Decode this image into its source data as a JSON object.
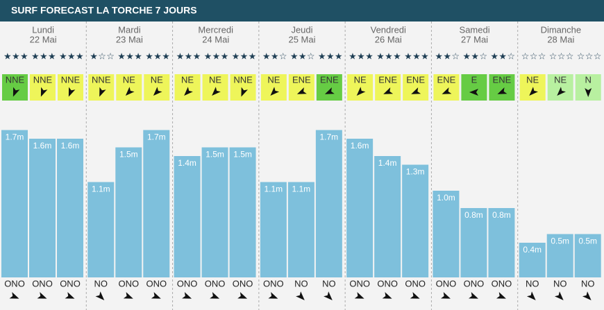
{
  "title": "SURF FORECAST LA TORCHE 7 JOURS",
  "days": [
    {
      "name": "Lundi",
      "date": "22 Mai",
      "slots": [
        {
          "stars": 3,
          "wind": "NNE",
          "wind_color": "#66cc44",
          "height": 1.7,
          "height_label": "1.7m",
          "swell": "ONO"
        },
        {
          "stars": 3,
          "wind": "NNE",
          "wind_color": "#eef55a",
          "height": 1.6,
          "height_label": "1.6m",
          "swell": "ONO"
        },
        {
          "stars": 3,
          "wind": "NNE",
          "wind_color": "#eef55a",
          "height": 1.6,
          "height_label": "1.6m",
          "swell": "ONO"
        }
      ]
    },
    {
      "name": "Mardi",
      "date": "23 Mai",
      "slots": [
        {
          "stars": 1,
          "wind": "NNE",
          "wind_color": "#eef55a",
          "height": 1.1,
          "height_label": "1.1m",
          "swell": "NO"
        },
        {
          "stars": 3,
          "wind": "NE",
          "wind_color": "#eef55a",
          "height": 1.5,
          "height_label": "1.5m",
          "swell": "ONO"
        },
        {
          "stars": 3,
          "wind": "NE",
          "wind_color": "#eef55a",
          "height": 1.7,
          "height_label": "1.7m",
          "swell": "ONO"
        }
      ]
    },
    {
      "name": "Mercredi",
      "date": "24 Mai",
      "slots": [
        {
          "stars": 3,
          "wind": "NE",
          "wind_color": "#eef55a",
          "height": 1.4,
          "height_label": "1.4m",
          "swell": "ONO"
        },
        {
          "stars": 3,
          "wind": "NE",
          "wind_color": "#eef55a",
          "height": 1.5,
          "height_label": "1.5m",
          "swell": "ONO"
        },
        {
          "stars": 3,
          "wind": "NNE",
          "wind_color": "#eef55a",
          "height": 1.5,
          "height_label": "1.5m",
          "swell": "ONO"
        }
      ]
    },
    {
      "name": "Jeudi",
      "date": "25 Mai",
      "slots": [
        {
          "stars": 2,
          "wind": "NE",
          "wind_color": "#eef55a",
          "height": 1.1,
          "height_label": "1.1m",
          "swell": "ONO"
        },
        {
          "stars": 2,
          "wind": "ENE",
          "wind_color": "#eef55a",
          "height": 1.1,
          "height_label": "1.1m",
          "swell": "NO"
        },
        {
          "stars": 3,
          "wind": "ENE",
          "wind_color": "#66cc44",
          "height": 1.7,
          "height_label": "1.7m",
          "swell": "NO"
        }
      ]
    },
    {
      "name": "Vendredi",
      "date": "26 Mai",
      "slots": [
        {
          "stars": 3,
          "wind": "NE",
          "wind_color": "#eef55a",
          "height": 1.6,
          "height_label": "1.6m",
          "swell": "ONO"
        },
        {
          "stars": 3,
          "wind": "ENE",
          "wind_color": "#eef55a",
          "height": 1.4,
          "height_label": "1.4m",
          "swell": "ONO"
        },
        {
          "stars": 3,
          "wind": "ENE",
          "wind_color": "#eef55a",
          "height": 1.3,
          "height_label": "1.3m",
          "swell": "ONO"
        }
      ]
    },
    {
      "name": "Samedi",
      "date": "27 Mai",
      "slots": [
        {
          "stars": 2,
          "wind": "ENE",
          "wind_color": "#eef55a",
          "height": 1.0,
          "height_label": "1.0m",
          "swell": "ONO"
        },
        {
          "stars": 2,
          "wind": "E",
          "wind_color": "#66cc44",
          "height": 0.8,
          "height_label": "0.8m",
          "swell": "ONO"
        },
        {
          "stars": 2,
          "wind": "ENE",
          "wind_color": "#66cc44",
          "height": 0.8,
          "height_label": "0.8m",
          "swell": "ONO"
        }
      ]
    },
    {
      "name": "Dimanche",
      "date": "28 Mai",
      "slots": [
        {
          "stars": 0,
          "wind": "NE",
          "wind_color": "#eef55a",
          "height": 0.4,
          "height_label": "0.4m",
          "swell": "NO"
        },
        {
          "stars": 0,
          "wind": "NE",
          "wind_color": "#b8f0a0",
          "height": 0.5,
          "height_label": "0.5m",
          "swell": "NO"
        },
        {
          "stars": 0,
          "wind": "N",
          "wind_color": "#b8f0a0",
          "height": 0.5,
          "height_label": "0.5m",
          "swell": "NO"
        }
      ]
    }
  ]
}
